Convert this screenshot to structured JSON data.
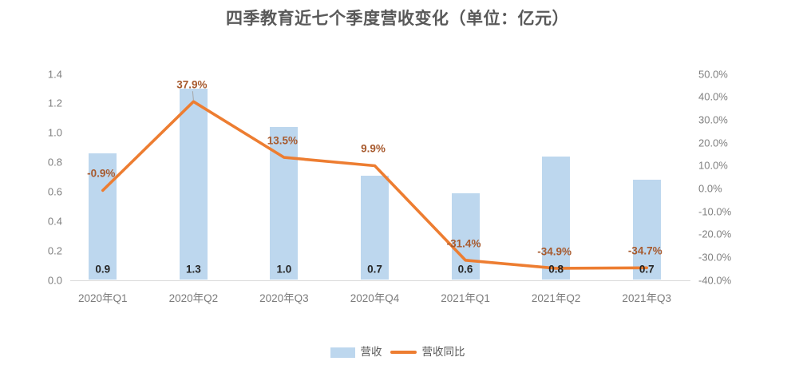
{
  "chart_data": {
    "type": "combo",
    "title": "四季教育近七个季度营收变化（单位：亿元）",
    "categories": [
      "2020年Q1",
      "2020年Q2",
      "2020年Q3",
      "2020年Q4",
      "2021年Q1",
      "2021年Q2",
      "2021年Q3"
    ],
    "series": [
      {
        "name": "营收",
        "type": "bar",
        "axis": "left",
        "values": [
          0.9,
          1.3,
          1.0,
          0.7,
          0.6,
          0.8,
          0.7
        ],
        "values_precise": [
          0.86,
          1.3,
          1.04,
          0.71,
          0.59,
          0.84,
          0.68
        ],
        "labels": [
          "0.9",
          "1.3",
          "1.0",
          "0.7",
          "0.6",
          "0.8",
          "0.7"
        ],
        "color": "#bdd7ee",
        "label_color": "#262626"
      },
      {
        "name": "营收同比",
        "type": "line",
        "axis": "right",
        "values": [
          -0.9,
          37.9,
          13.5,
          9.9,
          -31.4,
          -34.9,
          -34.7
        ],
        "labels": [
          "-0.9%",
          "37.9%",
          "13.5%",
          "9.9%",
          "-31.4%",
          "-34.9%",
          "-34.7%"
        ],
        "color": "#ed7d31",
        "label_color": "#a75a2e"
      }
    ],
    "left_axis": {
      "min": 0.0,
      "max": 1.4,
      "step": 0.2,
      "ticks": [
        "1.4",
        "1.2",
        "1.0",
        "0.8",
        "0.6",
        "0.4",
        "0.2",
        "0.0"
      ]
    },
    "right_axis": {
      "min": -40,
      "max": 50,
      "step": 10,
      "ticks": [
        "50.0%",
        "40.0%",
        "30.0%",
        "20.0%",
        "10.0%",
        "0.0%",
        "-10.0%",
        "-20.0%",
        "-30.0%",
        "-40.0%"
      ]
    },
    "grid": false,
    "legend_position": "bottom",
    "colors": {
      "bar_fill": "#bdd7ee",
      "line_stroke": "#ed7d31",
      "pct_label": "#a75a2e",
      "bar_value_label": "#262626",
      "axis_tick_text": "#808080",
      "category_text": "#7c7c7c",
      "title_text": "#595959",
      "axis_line": "#d9d9d9",
      "leader_line": "#a6a6a6"
    }
  }
}
